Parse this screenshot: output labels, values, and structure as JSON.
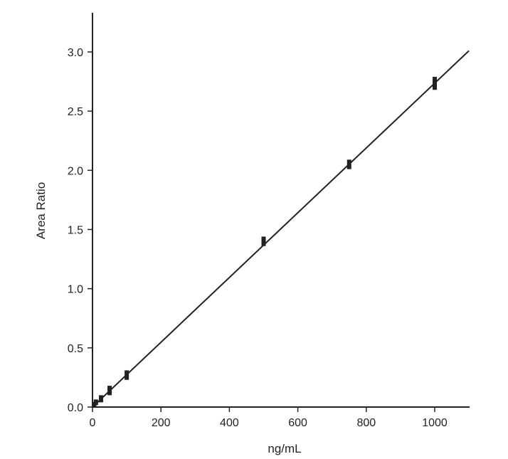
{
  "chart_data": {
    "type": "scatter",
    "title": "",
    "xlabel": "ng/mL",
    "ylabel": "Area Ratio",
    "xlim": [
      0,
      1100
    ],
    "ylim": [
      0,
      3.3
    ],
    "xticks": [
      0,
      200,
      400,
      600,
      800,
      1000
    ],
    "yticks": [
      0.0,
      0.5,
      1.0,
      1.5,
      2.0,
      2.5,
      3.0
    ],
    "x_tick_labels": [
      "0",
      "200",
      "400",
      "600",
      "800",
      "1000"
    ],
    "y_tick_labels": [
      "0.0",
      "0.5",
      "1.0",
      "1.5",
      "2.0",
      "2.5",
      "3.0"
    ],
    "grid": false,
    "legend": "none",
    "colors": {
      "ink": "#222222",
      "background": "#ffffff"
    },
    "points": [
      {
        "x": 5,
        "y": 0.02,
        "ylo": 0.0,
        "yhi": 0.04
      },
      {
        "x": 10,
        "y": 0.04,
        "ylo": 0.02,
        "yhi": 0.06
      },
      {
        "x": 25,
        "y": 0.07,
        "ylo": 0.04,
        "yhi": 0.1
      },
      {
        "x": 50,
        "y": 0.14,
        "ylo": 0.1,
        "yhi": 0.18
      },
      {
        "x": 100,
        "y": 0.27,
        "ylo": 0.23,
        "yhi": 0.31
      },
      {
        "x": 500,
        "y": 1.4,
        "ylo": 1.36,
        "yhi": 1.44
      },
      {
        "x": 750,
        "y": 2.05,
        "ylo": 2.01,
        "yhi": 2.09
      },
      {
        "x": 1000,
        "y": 2.73,
        "ylo": 2.68,
        "yhi": 2.79
      }
    ],
    "fit_line": {
      "x": [
        0,
        1100
      ],
      "y": [
        0.0,
        3.01
      ]
    }
  }
}
